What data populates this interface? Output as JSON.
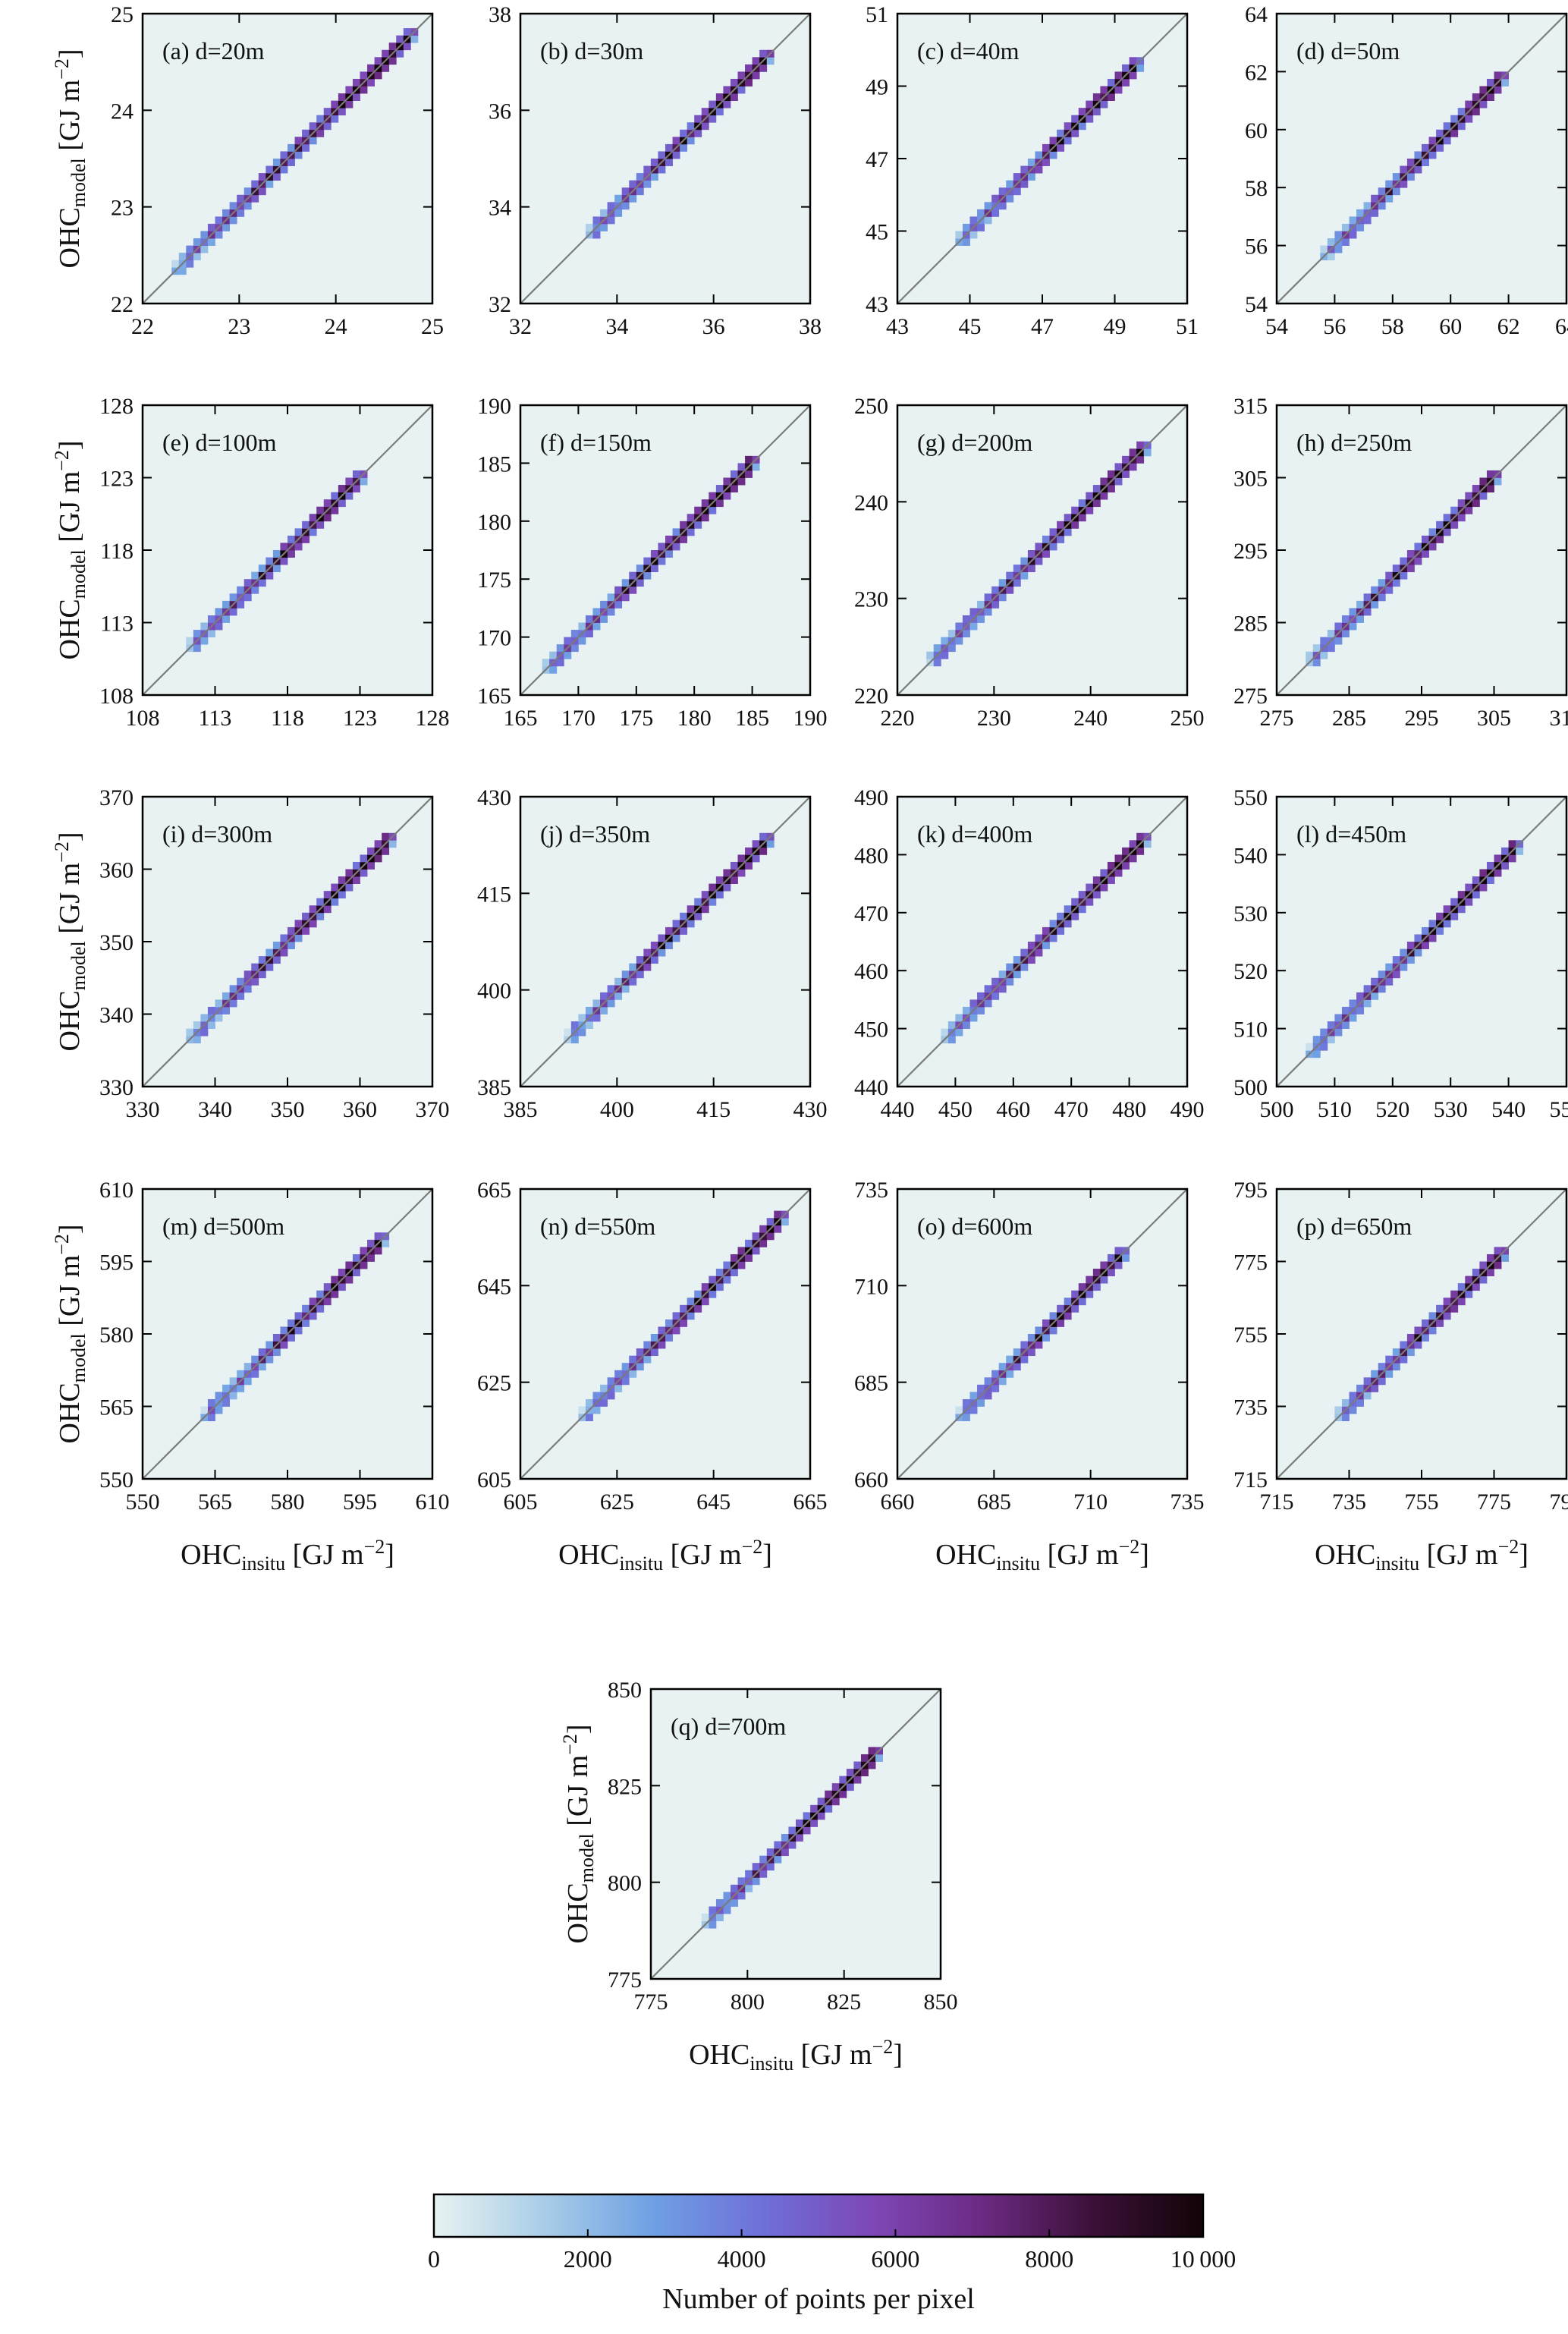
{
  "figure": {
    "ylabel_main": "OHC",
    "ylabel_sub": "model",
    "ylabel_unit_pre": " [GJ m",
    "ylabel_unit_sup": "−2",
    "ylabel_unit_post": "]",
    "xlabel_main": "OHC",
    "xlabel_sub": "insitu",
    "xlabel_unit_pre": " [GJ m",
    "xlabel_unit_sup": "−2",
    "xlabel_unit_post": "]",
    "colorbar": {
      "label": "Number of points per pixel",
      "range": [
        0,
        10000
      ],
      "ticks": [
        0,
        2000,
        4000,
        6000,
        8000,
        10000
      ],
      "tick_labels": [
        "0",
        "2000",
        "4000",
        "6000",
        "8000",
        "10 000"
      ],
      "colors": [
        "#e8f2f2",
        "#a9cde7",
        "#6fa0e3",
        "#6f6fd9",
        "#7d47b5",
        "#6b2a82",
        "#3c1038",
        "#120408"
      ]
    }
  },
  "chart_data": [
    {
      "type": "heatmap",
      "title": "(a) d=20m",
      "xlim": [
        22,
        25
      ],
      "ylim": [
        22,
        25
      ],
      "ticks": [
        22,
        23,
        24,
        25
      ],
      "xlabel": "",
      "ylabel": "OHC_model [GJ m^-2]",
      "diagonal": "1:1 line",
      "data_range": [
        22.3,
        24.8
      ]
    },
    {
      "type": "heatmap",
      "title": "(b) d=30m",
      "xlim": [
        32,
        38
      ],
      "ylim": [
        32,
        38
      ],
      "ticks": [
        32,
        34,
        36,
        38
      ],
      "xlabel": "",
      "ylabel": "",
      "diagonal": "1:1 line",
      "data_range": [
        33.4,
        37.2
      ]
    },
    {
      "type": "heatmap",
      "title": "(c) d=40m",
      "xlim": [
        43,
        51
      ],
      "ylim": [
        43,
        51
      ],
      "ticks": [
        43,
        45,
        47,
        49,
        51
      ],
      "xlabel": "",
      "ylabel": "",
      "diagonal": "1:1 line",
      "data_range": [
        44.6,
        49.6
      ]
    },
    {
      "type": "heatmap",
      "title": "(d) d=50m",
      "xlim": [
        54,
        64
      ],
      "ylim": [
        54,
        64
      ],
      "ticks": [
        54,
        56,
        58,
        60,
        62,
        64
      ],
      "xlabel": "",
      "ylabel": "",
      "diagonal": "1:1 line",
      "data_range": [
        55.6,
        62.0
      ]
    },
    {
      "type": "heatmap",
      "title": "(e) d=100m",
      "xlim": [
        108,
        128
      ],
      "ylim": [
        108,
        128
      ],
      "ticks": [
        108,
        113,
        118,
        123,
        128
      ],
      "xlabel": "",
      "ylabel": "OHC_model [GJ m^-2]",
      "diagonal": "1:1 line",
      "data_range": [
        111.3,
        123.3
      ]
    },
    {
      "type": "heatmap",
      "title": "(f) d=150m",
      "xlim": [
        165,
        190
      ],
      "ylim": [
        165,
        190
      ],
      "ticks": [
        165,
        170,
        175,
        180,
        185,
        190
      ],
      "xlabel": "",
      "ylabel": "",
      "diagonal": "1:1 line",
      "data_range": [
        167.2,
        185.2
      ]
    },
    {
      "type": "heatmap",
      "title": "(g) d=200m",
      "xlim": [
        220,
        250
      ],
      "ylim": [
        220,
        250
      ],
      "ticks": [
        220,
        230,
        240,
        250
      ],
      "xlabel": "",
      "ylabel": "",
      "diagonal": "1:1 line",
      "data_range": [
        223.5,
        245.8
      ]
    },
    {
      "type": "heatmap",
      "title": "(h) d=250m",
      "xlim": [
        275,
        315
      ],
      "ylim": [
        275,
        315
      ],
      "ticks": [
        275,
        285,
        295,
        305,
        315
      ],
      "xlabel": "",
      "ylabel": "",
      "diagonal": "1:1 line",
      "data_range": [
        279.8,
        305.5
      ]
    },
    {
      "type": "heatmap",
      "title": "(i) d=300m",
      "xlim": [
        330,
        370
      ],
      "ylim": [
        330,
        370
      ],
      "ticks": [
        330,
        340,
        350,
        360,
        370
      ],
      "xlabel": "",
      "ylabel": "OHC_model [GJ m^-2]",
      "diagonal": "1:1 line",
      "data_range": [
        336.2,
        365.0
      ]
    },
    {
      "type": "heatmap",
      "title": "(j) d=350m",
      "xlim": [
        385,
        430
      ],
      "ylim": [
        385,
        430
      ],
      "ticks": [
        385,
        400,
        415,
        430
      ],
      "xlabel": "",
      "ylabel": "",
      "diagonal": "1:1 line",
      "data_range": [
        392.6,
        424.0
      ]
    },
    {
      "type": "heatmap",
      "title": "(k) d=400m",
      "xlim": [
        440,
        490
      ],
      "ylim": [
        440,
        490
      ],
      "ticks": [
        440,
        450,
        460,
        470,
        480,
        490
      ],
      "xlabel": "",
      "ylabel": "",
      "diagonal": "1:1 line",
      "data_range": [
        448.5,
        483.0
      ]
    },
    {
      "type": "heatmap",
      "title": "(l) d=450m",
      "xlim": [
        500,
        550
      ],
      "ylim": [
        500,
        550
      ],
      "ticks": [
        500,
        510,
        520,
        530,
        540,
        550
      ],
      "xlabel": "",
      "ylabel": "",
      "diagonal": "1:1 line",
      "data_range": [
        505.0,
        542.0
      ]
    },
    {
      "type": "heatmap",
      "title": "(m) d=500m",
      "xlim": [
        550,
        610
      ],
      "ylim": [
        550,
        610
      ],
      "ticks": [
        550,
        565,
        580,
        595,
        610
      ],
      "xlabel": "OHC_insitu [GJ m^-2]",
      "ylabel": "OHC_model [GJ m^-2]",
      "diagonal": "1:1 line",
      "data_range": [
        563.0,
        601.0
      ]
    },
    {
      "type": "heatmap",
      "title": "(n) d=550m",
      "xlim": [
        605,
        665
      ],
      "ylim": [
        605,
        665
      ],
      "ticks": [
        605,
        625,
        645,
        665
      ],
      "xlabel": "OHC_insitu [GJ m^-2]",
      "ylabel": "",
      "diagonal": "1:1 line",
      "data_range": [
        618.0,
        659.5
      ]
    },
    {
      "type": "heatmap",
      "title": "(o) d=600m",
      "xlim": [
        660,
        735
      ],
      "ylim": [
        660,
        735
      ],
      "ticks": [
        660,
        685,
        710,
        735
      ],
      "xlabel": "OHC_insitu [GJ m^-2]",
      "ylabel": "",
      "diagonal": "1:1 line",
      "data_range": [
        675.5,
        719.0
      ]
    },
    {
      "type": "heatmap",
      "title": "(p) d=650m",
      "xlim": [
        715,
        795
      ],
      "ylim": [
        715,
        795
      ],
      "ticks": [
        715,
        735,
        755,
        775,
        795
      ],
      "xlabel": "OHC_insitu [GJ m^-2]",
      "ylabel": "",
      "diagonal": "1:1 line",
      "data_range": [
        731.0,
        779.0
      ]
    },
    {
      "type": "heatmap",
      "title": "(q) d=700m",
      "xlim": [
        775,
        850
      ],
      "ylim": [
        775,
        850
      ],
      "ticks": [
        775,
        800,
        825,
        850
      ],
      "xlabel": "OHC_insitu [GJ m^-2]",
      "ylabel": "OHC_model [GJ m^-2]",
      "diagonal": "1:1 line",
      "data_range": [
        789.0,
        835.0
      ]
    }
  ]
}
